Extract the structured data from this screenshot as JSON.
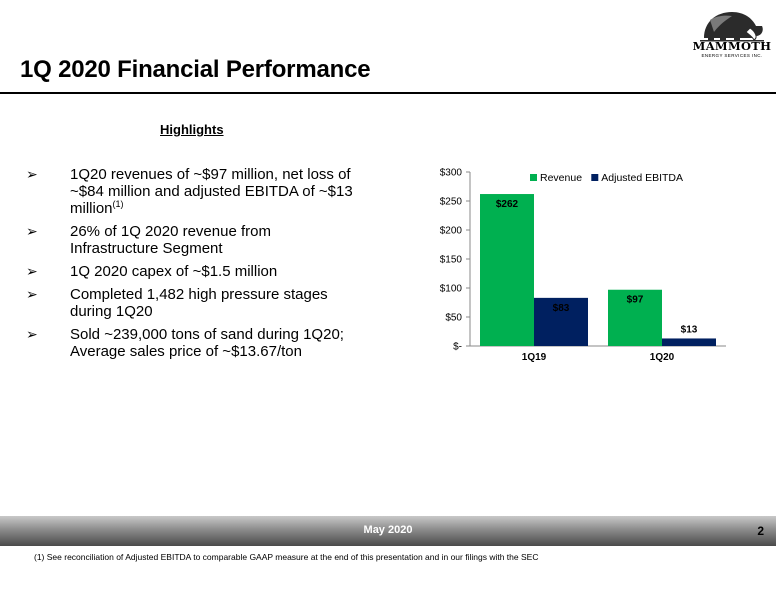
{
  "header": {
    "title": "1Q 2020 Financial Performance"
  },
  "logo": {
    "name": "MAMMOTH",
    "subtitle": "ENERGY SERVICES INC."
  },
  "highlights": {
    "heading": "Highlights",
    "bullets": [
      {
        "text": "1Q20 revenues of ~$97 million, net loss of ~$84 million and adjusted EBITDA of ~$13 million",
        "sup": "(1)"
      },
      {
        "text": "26% of 1Q 2020 revenue from Infrastructure Segment"
      },
      {
        "text": "1Q 2020 capex of ~$1.5 million"
      },
      {
        "text": "Completed 1,482 high pressure stages during 1Q20"
      },
      {
        "text": "Sold ~239,000 tons of sand during 1Q20; Average sales price of ~$13.67/ton"
      }
    ]
  },
  "chart_data": {
    "type": "bar",
    "categories": [
      "1Q19",
      "1Q20"
    ],
    "series": [
      {
        "name": "Revenue",
        "values": [
          262,
          97
        ],
        "labels": [
          "$262",
          "$97"
        ],
        "color": "#00b050"
      },
      {
        "name": "Adjusted EBITDA",
        "values": [
          83,
          13
        ],
        "labels": [
          "$83",
          "$13"
        ],
        "color": "#002060"
      }
    ],
    "ylim": [
      0,
      300
    ],
    "yticks": [
      0,
      50,
      100,
      150,
      200,
      250,
      300
    ],
    "ytick_labels": [
      "$-",
      "$50",
      "$100",
      "$150",
      "$200",
      "$250",
      "$300"
    ],
    "legend": "top-right",
    "grid": false
  },
  "footer": {
    "date": "May 2020",
    "page": "2",
    "footnote": "(1) See reconciliation of Adjusted EBITDA to comparable GAAP measure at the end of this presentation and in our filings with the SEC"
  }
}
